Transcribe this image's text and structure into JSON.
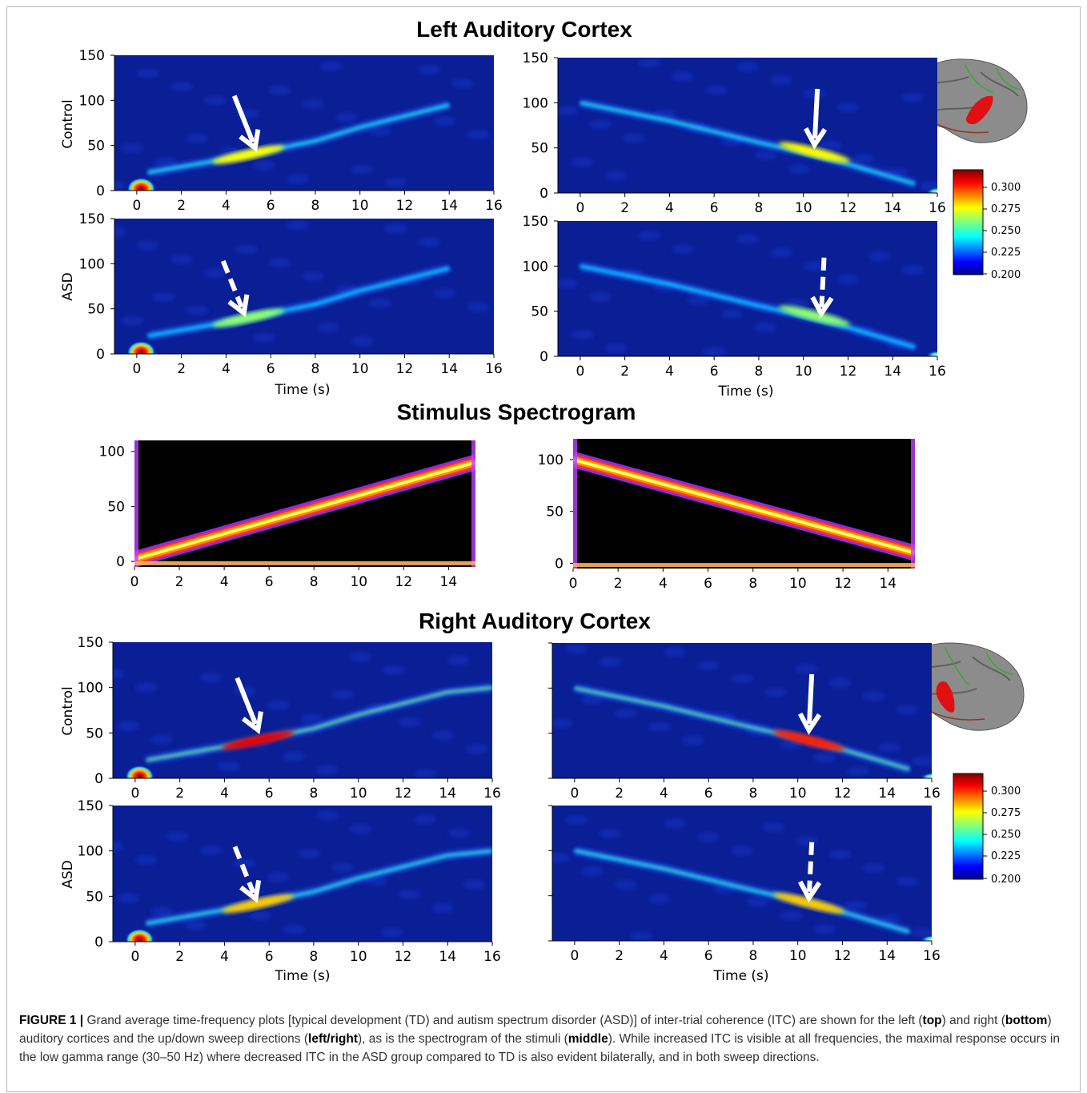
{
  "section_titles": {
    "left": "Left Auditory Cortex",
    "stimulus": "Stimulus Spectrogram",
    "right": "Right Auditory Cortex"
  },
  "row_labels": [
    "Control",
    "ASD"
  ],
  "xlabel": "Time (s)",
  "colorbar_ticks": [
    "0.300",
    "0.275",
    "0.250",
    "0.225",
    "0.200"
  ],
  "itc_x_ticks": [
    "0",
    "2",
    "4",
    "6",
    "8",
    "10",
    "12",
    "14",
    "16"
  ],
  "itc_y_ticks": [
    "150",
    "100",
    "50",
    "0"
  ],
  "stim_x_ticks": [
    "0",
    "2",
    "4",
    "6",
    "8",
    "10",
    "12",
    "14"
  ],
  "stim_y_ticks": [
    "100",
    "50",
    "0"
  ],
  "colors": {
    "itc_background": "#0a1e96",
    "stim_background": "#000000",
    "arrow": "#ffffff",
    "highlight_region": "#e01010"
  },
  "chart_data": [
    {
      "type": "heatmap",
      "section": "Left Auditory Cortex",
      "group": "Control",
      "sweep": "up",
      "ylabel": "Control",
      "xlim": [
        -1,
        16
      ],
      "ylim": [
        0,
        150
      ],
      "colorbar_range": [
        0.2,
        0.3
      ],
      "ridge": [
        [
          0.5,
          20
        ],
        [
          4,
          35
        ],
        [
          6,
          45
        ],
        [
          8,
          55
        ],
        [
          10,
          70
        ],
        [
          14,
          95
        ]
      ],
      "peak": [
        5,
        40
      ],
      "peak_value": 0.25
    },
    {
      "type": "heatmap",
      "section": "Left Auditory Cortex",
      "group": "Control",
      "sweep": "down",
      "xlim": [
        -1,
        16
      ],
      "ylim": [
        0,
        150
      ],
      "colorbar_range": [
        0.2,
        0.3
      ],
      "ridge": [
        [
          0,
          100
        ],
        [
          4,
          80
        ],
        [
          6,
          68
        ],
        [
          8,
          56
        ],
        [
          10,
          45
        ],
        [
          12,
          32
        ],
        [
          15,
          10
        ]
      ],
      "peak": [
        10.5,
        45
      ],
      "peak_value": 0.25
    },
    {
      "type": "heatmap",
      "section": "Left Auditory Cortex",
      "group": "ASD",
      "sweep": "up",
      "ylabel": "ASD",
      "xlabel": "Time (s)",
      "xlim": [
        -1,
        16
      ],
      "ylim": [
        0,
        150
      ],
      "colorbar_range": [
        0.2,
        0.3
      ],
      "ridge": [
        [
          0.5,
          20
        ],
        [
          4,
          35
        ],
        [
          6,
          45
        ],
        [
          8,
          55
        ],
        [
          10,
          70
        ],
        [
          14,
          95
        ]
      ],
      "peak": [
        5,
        40
      ],
      "peak_value": 0.23
    },
    {
      "type": "heatmap",
      "section": "Left Auditory Cortex",
      "group": "ASD",
      "sweep": "down",
      "xlabel": "Time (s)",
      "xlim": [
        -1,
        16
      ],
      "ylim": [
        0,
        150
      ],
      "colorbar_range": [
        0.2,
        0.3
      ],
      "ridge": [
        [
          0,
          100
        ],
        [
          4,
          80
        ],
        [
          6,
          68
        ],
        [
          8,
          56
        ],
        [
          10,
          45
        ],
        [
          12,
          32
        ],
        [
          15,
          10
        ]
      ],
      "peak": [
        10.5,
        45
      ],
      "peak_value": 0.23
    },
    {
      "type": "heatmap",
      "section": "Stimulus Spectrogram",
      "sweep": "up",
      "xlim": [
        0,
        15.2
      ],
      "ylim": [
        -5,
        110
      ],
      "line": [
        [
          0,
          2
        ],
        [
          15.2,
          90
        ]
      ]
    },
    {
      "type": "heatmap",
      "section": "Stimulus Spectrogram",
      "sweep": "down",
      "xlim": [
        0,
        15.2
      ],
      "ylim": [
        -5,
        120
      ],
      "line": [
        [
          0,
          100
        ],
        [
          15.2,
          10
        ]
      ]
    },
    {
      "type": "heatmap",
      "section": "Right Auditory Cortex",
      "group": "Control",
      "sweep": "up",
      "ylabel": "Control",
      "xlim": [
        -1,
        16
      ],
      "ylim": [
        0,
        150
      ],
      "colorbar_range": [
        0.2,
        0.3
      ],
      "ridge": [
        [
          0.5,
          20
        ],
        [
          4,
          35
        ],
        [
          6,
          45
        ],
        [
          8,
          55
        ],
        [
          10,
          70
        ],
        [
          14,
          95
        ],
        [
          16,
          100
        ]
      ],
      "peak": [
        5.5,
        42
      ],
      "peak_value": 0.3
    },
    {
      "type": "heatmap",
      "section": "Right Auditory Cortex",
      "group": "Control",
      "sweep": "down",
      "xlim": [
        -1,
        16
      ],
      "ylim": [
        0,
        150
      ],
      "colorbar_range": [
        0.2,
        0.3
      ],
      "ridge": [
        [
          0,
          100
        ],
        [
          4,
          80
        ],
        [
          6,
          68
        ],
        [
          8,
          56
        ],
        [
          10,
          45
        ],
        [
          12,
          32
        ],
        [
          15,
          10
        ]
      ],
      "peak": [
        10.5,
        42
      ],
      "peak_value": 0.29
    },
    {
      "type": "heatmap",
      "section": "Right Auditory Cortex",
      "group": "ASD",
      "sweep": "up",
      "ylabel": "ASD",
      "xlabel": "Time (s)",
      "xlim": [
        -1,
        16
      ],
      "ylim": [
        0,
        150
      ],
      "colorbar_range": [
        0.2,
        0.3
      ],
      "ridge": [
        [
          0.5,
          20
        ],
        [
          4,
          35
        ],
        [
          6,
          45
        ],
        [
          8,
          55
        ],
        [
          10,
          70
        ],
        [
          14,
          95
        ],
        [
          16,
          100
        ]
      ],
      "peak": [
        5.5,
        42
      ],
      "peak_value": 0.26
    },
    {
      "type": "heatmap",
      "section": "Right Auditory Cortex",
      "group": "ASD",
      "sweep": "down",
      "xlabel": "Time (s)",
      "xlim": [
        -1,
        16
      ],
      "ylim": [
        0,
        150
      ],
      "colorbar_range": [
        0.2,
        0.3
      ],
      "ridge": [
        [
          0,
          100
        ],
        [
          4,
          80
        ],
        [
          6,
          68
        ],
        [
          8,
          56
        ],
        [
          10,
          45
        ],
        [
          12,
          32
        ],
        [
          15,
          10
        ]
      ],
      "peak": [
        10.5,
        42
      ],
      "peak_value": 0.26
    }
  ],
  "caption": {
    "label": "FIGURE 1 |",
    "parts": [
      " Grand average time-frequency plots [typical development (TD) and autism spectrum disorder (ASD)] of inter-trial coherence (ITC) are shown for the left (",
      "top",
      ") and right (",
      "bottom",
      ") auditory cortices and the up/down sweep directions (",
      "left/right",
      "), as is the spectrogram of the stimuli (",
      "middle",
      "). While increased ITC is visible at all frequencies, the maximal response occurs in the low gamma range (30–50 Hz) where decreased ITC in the ASD group compared to TD is also evident bilaterally, and in both sweep directions."
    ]
  }
}
